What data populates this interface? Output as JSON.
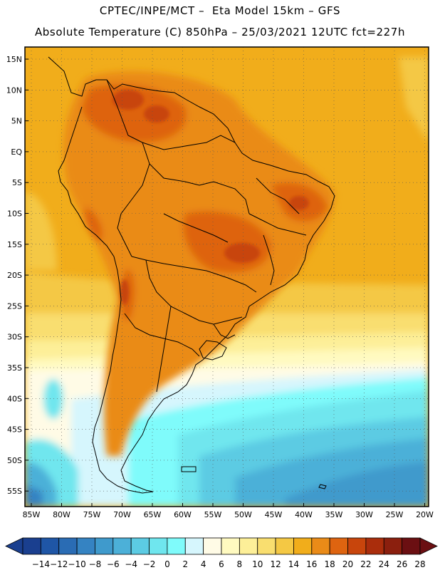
{
  "header": {
    "line1": "CPTEC/INPE/MCT –  Eta Model 15km – GFS",
    "line2": "Absolute Temperature (C) 850hPa – 25/03/2021 12UTC fct=227h"
  },
  "map": {
    "lat_labels": [
      "15N",
      "10N",
      "5N",
      "EQ",
      "5S",
      "10S",
      "15S",
      "20S",
      "25S",
      "30S",
      "35S",
      "40S",
      "45S",
      "50S",
      "55S"
    ],
    "lon_labels": [
      "85W",
      "80W",
      "75W",
      "70W",
      "65W",
      "60W",
      "55W",
      "50W",
      "45W",
      "40W",
      "35W",
      "30W",
      "25W",
      "20W"
    ]
  },
  "colorbar": {
    "labels": [
      "-14",
      "-12",
      "-10",
      "-8",
      "-6",
      "-4",
      "-2",
      "0",
      "2",
      "4",
      "6",
      "8",
      "10",
      "12",
      "14",
      "16",
      "18",
      "20",
      "22",
      "24",
      "26",
      "28"
    ],
    "colors": [
      "#1a3f8f",
      "#1f56a6",
      "#2a6cb4",
      "#3583c2",
      "#3f9acc",
      "#4cb0d8",
      "#5ccbe3",
      "#6fe6ee",
      "#7ffbfb",
      "#d6f6fd",
      "#fffbe6",
      "#fffac0",
      "#fdef98",
      "#f9de6f",
      "#f4c844",
      "#f1ad1b",
      "#ea8b18",
      "#de6410",
      "#c8450c",
      "#aa2d0c",
      "#8b1f0e",
      "#6b0f12"
    ]
  }
}
